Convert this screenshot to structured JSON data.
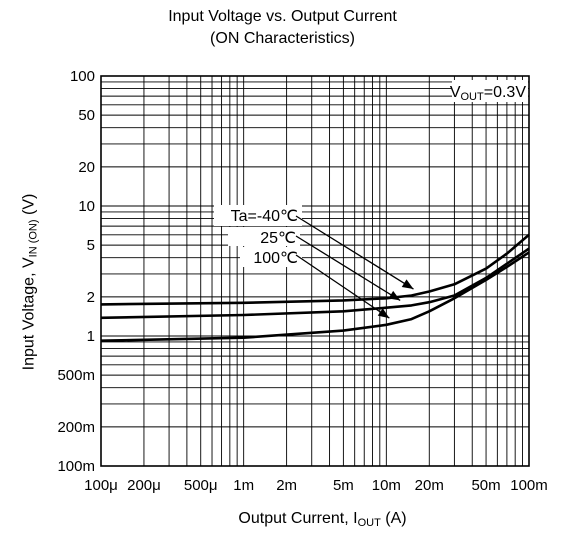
{
  "chart_data": {
    "type": "line",
    "title": "Input Voltage vs. Output Current",
    "subtitle": "(ON Characteristics)",
    "xlabel": {
      "main": "Output  Current, I",
      "sub": "OUT",
      "unit": " (A)"
    },
    "ylabel": {
      "main": "Input Voltage, V",
      "sub": "IN (ON)",
      "unit": " (V)"
    },
    "x_scale": "log",
    "y_scale": "log",
    "xlim": [
      0.0001,
      0.1
    ],
    "ylim": [
      0.1,
      100
    ],
    "grid": true,
    "x_ticks": [
      {
        "value": 0.0001,
        "label": "100μ"
      },
      {
        "value": 0.0002,
        "label": "200μ"
      },
      {
        "value": 0.0005,
        "label": "500μ"
      },
      {
        "value": 0.001,
        "label": "1m"
      },
      {
        "value": 0.002,
        "label": "2m"
      },
      {
        "value": 0.005,
        "label": "5m"
      },
      {
        "value": 0.01,
        "label": "10m"
      },
      {
        "value": 0.02,
        "label": "20m"
      },
      {
        "value": 0.05,
        "label": "50m"
      },
      {
        "value": 0.1,
        "label": "100m"
      }
    ],
    "y_ticks": [
      {
        "value": 0.1,
        "label": "100m"
      },
      {
        "value": 0.2,
        "label": "200m"
      },
      {
        "value": 0.5,
        "label": "500m"
      },
      {
        "value": 1,
        "label": "1"
      },
      {
        "value": 2,
        "label": "2"
      },
      {
        "value": 5,
        "label": "5"
      },
      {
        "value": 10,
        "label": "10"
      },
      {
        "value": 20,
        "label": "20"
      },
      {
        "value": 50,
        "label": "50"
      },
      {
        "value": 100,
        "label": "100"
      }
    ],
    "condition": "V_OUT=0.3V",
    "series": [
      {
        "name": "Ta=-40℃",
        "x": [
          0.0001,
          0.001,
          0.005,
          0.01,
          0.015,
          0.02,
          0.03,
          0.05,
          0.07,
          0.1
        ],
        "y": [
          1.75,
          1.8,
          1.88,
          1.95,
          2.05,
          2.2,
          2.5,
          3.3,
          4.3,
          6.0
        ]
      },
      {
        "name": "25℃",
        "x": [
          0.0001,
          0.001,
          0.005,
          0.01,
          0.015,
          0.02,
          0.03,
          0.05,
          0.07,
          0.1
        ],
        "y": [
          1.38,
          1.45,
          1.55,
          1.65,
          1.72,
          1.82,
          2.05,
          2.8,
          3.6,
          4.7
        ]
      },
      {
        "name": "100℃",
        "x": [
          0.0001,
          0.001,
          0.005,
          0.01,
          0.015,
          0.02,
          0.03,
          0.05,
          0.07,
          0.1
        ],
        "y": [
          0.92,
          0.97,
          1.1,
          1.22,
          1.35,
          1.55,
          1.95,
          2.7,
          3.4,
          4.4
        ]
      }
    ],
    "annotations": [
      {
        "label": "Ta=-40℃",
        "series": 0,
        "arrow_to_x": 0.0155
      },
      {
        "label": "25℃",
        "series": 1,
        "arrow_to_x": 0.0125
      },
      {
        "label": "100℃",
        "series": 2,
        "arrow_to_x": 0.0105
      }
    ]
  },
  "vout_label": {
    "main": "V",
    "sub": "OUT",
    "rest": "=0.3V"
  }
}
